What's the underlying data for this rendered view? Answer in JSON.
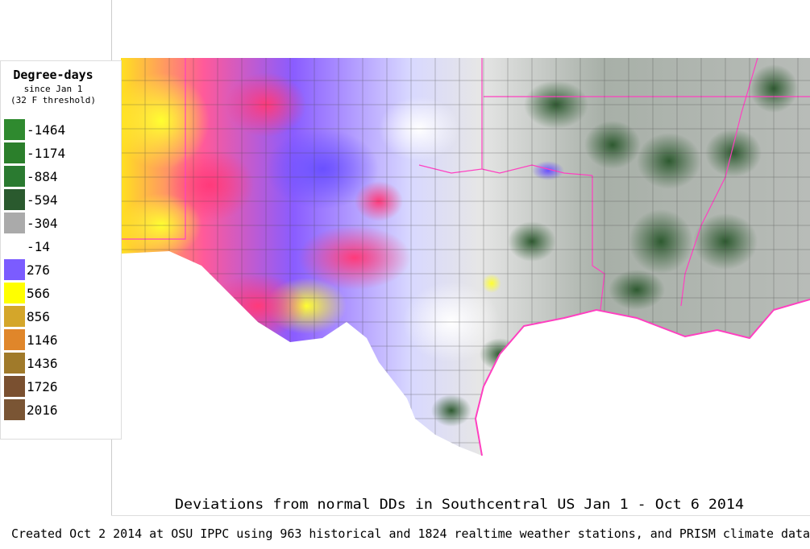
{
  "legend": {
    "title": "Degree-days",
    "subtitle": "since Jan 1",
    "note": "(32 F threshold)",
    "items": [
      {
        "label": "-1464",
        "color": "#2f8a2f"
      },
      {
        "label": "-1174",
        "color": "#2b7f2b"
      },
      {
        "label": "-884",
        "color": "#2a7a30"
      },
      {
        "label": "-594",
        "color": "#2a5a2e"
      },
      {
        "label": "-304",
        "color": "#aaaaaa"
      },
      {
        "label": "-14",
        "color": "#ffffff"
      },
      {
        "label": "276",
        "color": "#7b5cff"
      },
      {
        "label": "566",
        "color": "#ffff00"
      },
      {
        "label": "856",
        "color": "#d4a62a"
      },
      {
        "label": "1146",
        "color": "#e0862a"
      },
      {
        "label": "1436",
        "color": "#a07a2a"
      },
      {
        "label": "1726",
        "color": "#7a5030"
      },
      {
        "label": "2016",
        "color": "#7a5534"
      }
    ]
  },
  "caption": "Deviations from normal DDs in Southcentral US Jan 1 - Oct 6 2014",
  "footer": "Created Oct 2 2014 at OSU IPPC using 963 historical and 1824 realtime weather stations, and PRISM climate data"
}
